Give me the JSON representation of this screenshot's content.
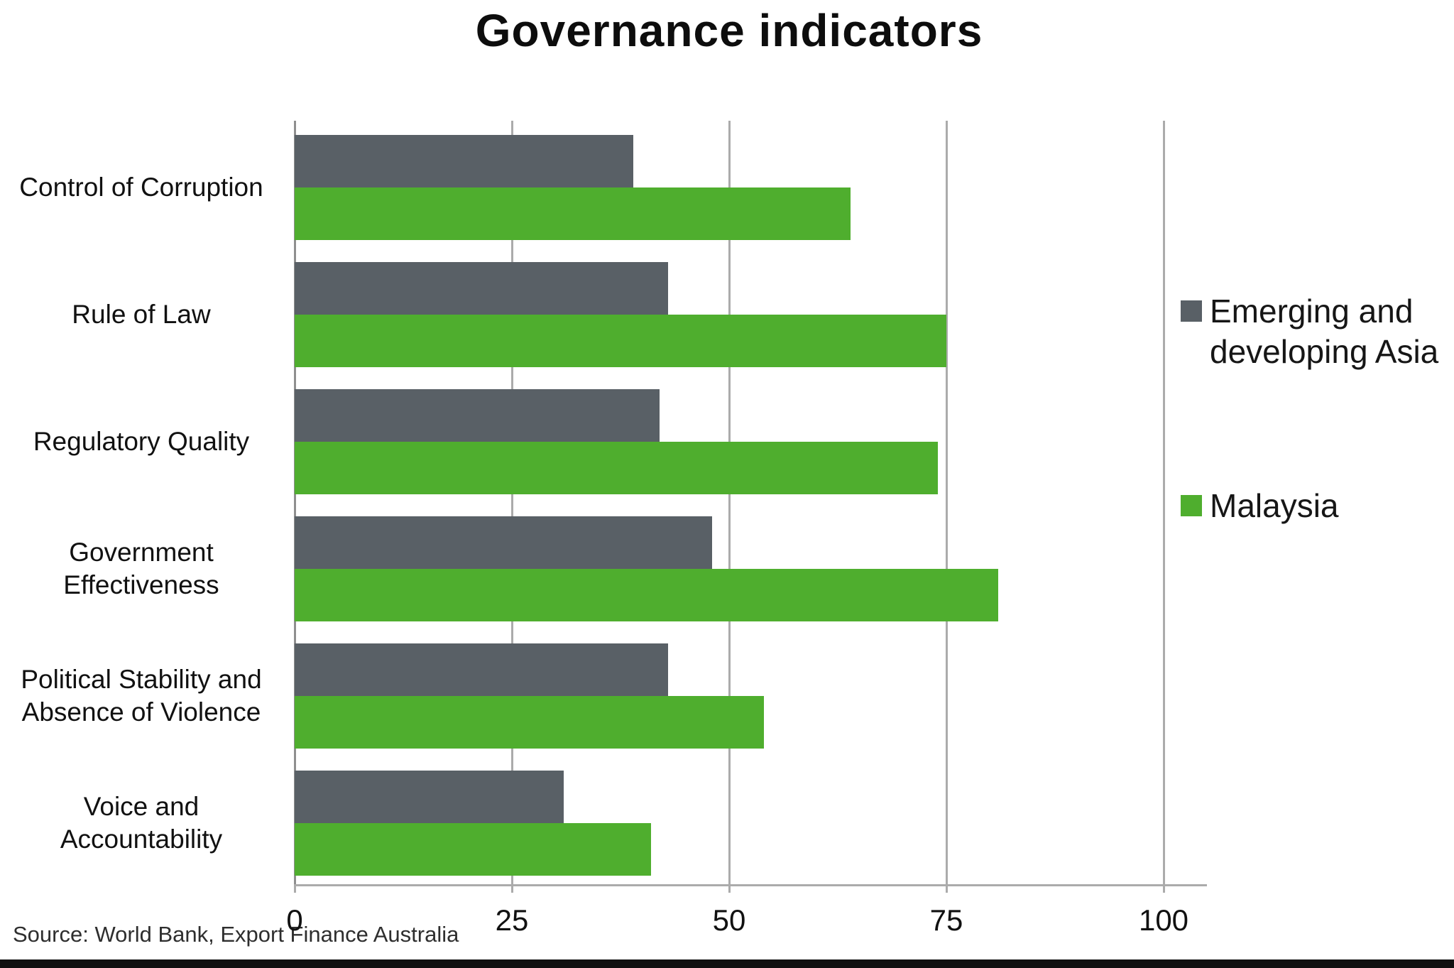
{
  "chart_data": {
    "type": "bar",
    "orientation": "horizontal",
    "title": "Governance indicators",
    "categories": [
      "Control of Corruption",
      "Rule of Law",
      "Regulatory Quality",
      "Government Effectiveness",
      "Political Stability and Absence of Violence",
      "Voice and Accountability"
    ],
    "category_label_lines": [
      [
        "Control of Corruption"
      ],
      [
        "Rule of Law"
      ],
      [
        "Regulatory Quality"
      ],
      [
        "Government",
        "Effectiveness"
      ],
      [
        "Political Stability and",
        "Absence of Violence"
      ],
      [
        "Voice and",
        "Accountability"
      ]
    ],
    "series": [
      {
        "name": "Emerging and developing Asia",
        "color": "#596066",
        "values": [
          39,
          43,
          42,
          48,
          43,
          31
        ]
      },
      {
        "name": "Malaysia",
        "color": "#4fae2e",
        "values": [
          64,
          75,
          74,
          81,
          54,
          41
        ]
      }
    ],
    "legend_lines": [
      [
        "Emerging and",
        "developing Asia"
      ],
      [
        "Malaysia"
      ]
    ],
    "x_ticks": [
      0,
      25,
      50,
      75,
      100
    ],
    "xlim": [
      0,
      100
    ],
    "grid": "vertical",
    "legend_position": "right"
  },
  "source": "Source: World Bank, Export Finance Australia",
  "colors": {
    "grid": "#ababab",
    "axis": "#8f8f8f",
    "text": "#111111",
    "source_text": "#2e2e2e",
    "background": "#ffffff",
    "bottom_bar": "#111111"
  }
}
